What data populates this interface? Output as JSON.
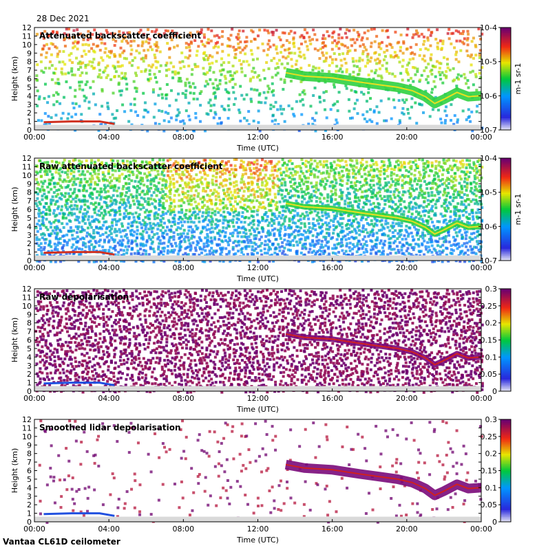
{
  "date": "28 Dec 2021",
  "site": "Vantaa CL61D ceilometer",
  "chart_data": [
    {
      "type": "heatmap",
      "title": "Attenuated backscatter coefficient",
      "xlabel": "Time (UTC)",
      "ylabel": "Height (km)",
      "x_ticks": [
        "00:00",
        "04:00",
        "08:00",
        "12:00",
        "16:00",
        "20:00",
        "00:00"
      ],
      "y_ticks": [
        0,
        1,
        2,
        3,
        4,
        5,
        6,
        7,
        8,
        9,
        10,
        11,
        12
      ],
      "ylim": [
        0,
        12
      ],
      "colorbar": {
        "scale": "log",
        "range": [
          1e-07,
          0.0001
        ],
        "labels": [
          "10-7",
          "10-6",
          "10-5",
          "10-4"
        ],
        "unit": "m-1 sr-1"
      }
    },
    {
      "type": "heatmap",
      "title": "Raw attenuated backscatter coefficient",
      "xlabel": "Time (UTC)",
      "ylabel": "Height (km)",
      "x_ticks": [
        "00:00",
        "04:00",
        "08:00",
        "12:00",
        "16:00",
        "20:00",
        "00:00"
      ],
      "y_ticks": [
        0,
        1,
        2,
        3,
        4,
        5,
        6,
        7,
        8,
        9,
        10,
        11,
        12
      ],
      "ylim": [
        0,
        12
      ],
      "colorbar": {
        "scale": "log",
        "range": [
          1e-07,
          0.0001
        ],
        "labels": [
          "10-7",
          "10-6",
          "10-5",
          "10-4"
        ],
        "unit": "m-1 sr-1"
      }
    },
    {
      "type": "heatmap",
      "title": "Raw depolarisation",
      "xlabel": "Time (UTC)",
      "ylabel": "Height (km)",
      "x_ticks": [
        "00:00",
        "04:00",
        "08:00",
        "12:00",
        "16:00",
        "20:00",
        "00:00"
      ],
      "y_ticks": [
        0,
        1,
        2,
        3,
        4,
        5,
        6,
        7,
        8,
        9,
        10,
        11,
        12
      ],
      "ylim": [
        0,
        12
      ],
      "colorbar": {
        "scale": "linear",
        "range": [
          0,
          0.3
        ],
        "labels": [
          "0",
          "0.05",
          "0.1",
          "0.15",
          "0.2",
          "0.25",
          "0.3"
        ],
        "unit": ""
      }
    },
    {
      "type": "heatmap",
      "title": "Smoothed lidar depolarisation",
      "xlabel": "Time (UTC)",
      "ylabel": "Height (km)",
      "x_ticks": [
        "00:00",
        "04:00",
        "08:00",
        "12:00",
        "16:00",
        "20:00",
        "00:00"
      ],
      "y_ticks": [
        0,
        1,
        2,
        3,
        4,
        5,
        6,
        7,
        8,
        9,
        10,
        11,
        12
      ],
      "ylim": [
        0,
        12
      ],
      "colorbar": {
        "scale": "linear",
        "range": [
          0,
          0.3
        ],
        "labels": [
          "0",
          "0.05",
          "0.1",
          "0.15",
          "0.2",
          "0.25",
          "0.3"
        ],
        "unit": ""
      }
    }
  ],
  "features": {
    "cloud_layer_height_km": [
      [
        13.5,
        6.7
      ],
      [
        14.5,
        6.3
      ],
      [
        16,
        6.1
      ],
      [
        17.5,
        5.6
      ],
      [
        18.5,
        5.3
      ],
      [
        19.5,
        5.0
      ],
      [
        20.3,
        4.6
      ],
      [
        21.0,
        3.9
      ],
      [
        21.5,
        3.1
      ],
      [
        22.0,
        3.6
      ],
      [
        22.7,
        4.4
      ],
      [
        23.3,
        3.9
      ],
      [
        24.0,
        4.0
      ]
    ],
    "low_layer_height_km": [
      [
        0.5,
        0.9
      ],
      [
        2,
        1.0
      ],
      [
        3.5,
        1.0
      ],
      [
        4.3,
        0.7
      ]
    ]
  }
}
